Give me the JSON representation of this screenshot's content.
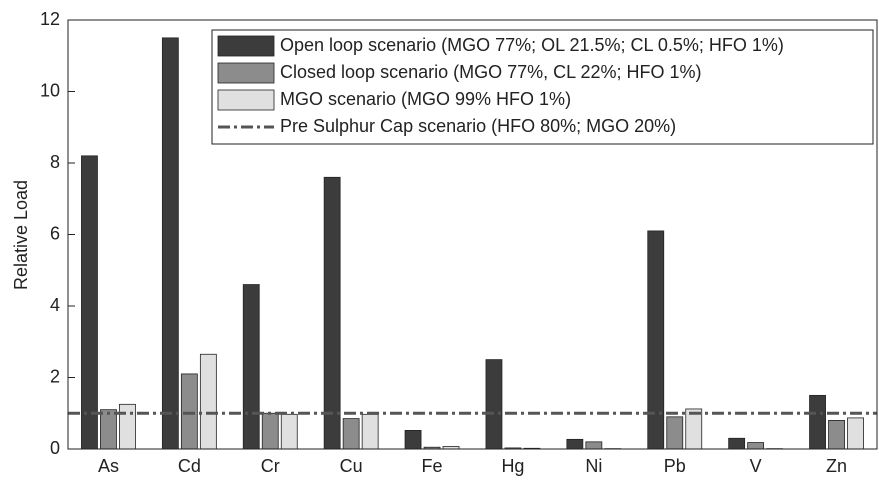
{
  "chart_data": {
    "type": "bar",
    "y_label": "Relative Load",
    "categories": [
      "As",
      "Cd",
      "Cr",
      "Cu",
      "Fe",
      "Hg",
      "Ni",
      "Pb",
      "V",
      "Zn"
    ],
    "series": [
      {
        "name": "Open loop scenario (MGO 77%; OL 21.5%; CL 0.5%; HFO 1%)",
        "color": "#3c3c3c",
        "values": [
          8.2,
          11.5,
          4.6,
          7.6,
          0.52,
          2.5,
          0.27,
          6.1,
          0.3,
          1.5
        ]
      },
      {
        "name": "Closed loop scenario (MGO 77%, CL 22%; HFO 1%)",
        "color": "#8c8c8c",
        "values": [
          1.1,
          2.1,
          1.0,
          0.85,
          0.05,
          0.03,
          0.2,
          0.9,
          0.18,
          0.8
        ]
      },
      {
        "name": "MGO scenario (MGO 99% HFO 1%)",
        "color": "#e0e0e0",
        "values": [
          1.25,
          2.65,
          0.97,
          0.97,
          0.07,
          0.02,
          0.01,
          1.12,
          0.01,
          0.87
        ]
      }
    ],
    "reference_line": {
      "name": "Pre Sulphur Cap scenario (HFO 80%; MGO 20%)",
      "value": 1,
      "color": "#555555"
    },
    "ylim": [
      0,
      12
    ],
    "yticks": [
      0,
      2,
      4,
      6,
      8,
      10,
      12
    ],
    "grid": false,
    "legend": "top-right"
  }
}
